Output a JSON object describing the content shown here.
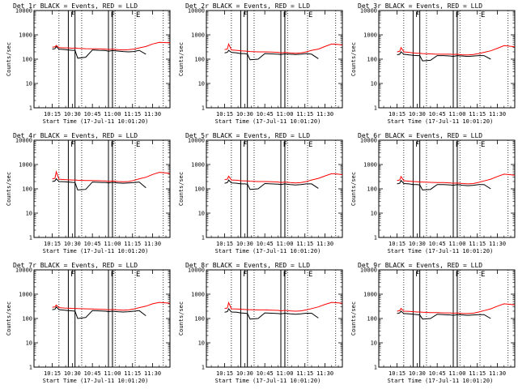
{
  "chart_data": {
    "type": "line",
    "panel_grid": "3x3",
    "common": {
      "xlabel": "Start Time (17-Jul-11 10:01:20)",
      "ylabel": "Counts/sec",
      "x_ticks": [
        "10:15",
        "10:30",
        "10:45",
        "11:00",
        "11:15",
        "11:30"
      ],
      "x_tick_minutes": [
        15,
        30,
        45,
        60,
        75,
        90
      ],
      "xlim_minutes": [
        1.33,
        103
      ],
      "y_scale": "log",
      "ylim": [
        1,
        10000
      ],
      "y_ticks": [
        "1",
        "10",
        "100",
        "1000",
        "10000"
      ],
      "y_tick_values": [
        1,
        10,
        100,
        1000,
        10000
      ],
      "dotted_lines_minutes": [
        20,
        37,
        62,
        77,
        98
      ],
      "solid_lines_minutes": [
        27,
        32,
        57,
        60
      ],
      "markers": [
        {
          "label": "F",
          "minute": 28
        },
        {
          "label": "F",
          "minute": 58
        },
        {
          "label": "E",
          "minute": 77
        }
      ],
      "series_colors": {
        "events": "#000000",
        "lld": "#ff0000"
      },
      "x_minutes": [
        15,
        17,
        18,
        20,
        24,
        27,
        30,
        32,
        34,
        40,
        45,
        50,
        55,
        57,
        60,
        64,
        68,
        72,
        76,
        80,
        85,
        90,
        95,
        100,
        103
      ]
    },
    "panels": [
      {
        "title": "Det 1r BLACK = Events, RED = LLD",
        "series": [
          {
            "name": "Events",
            "values": [
              260,
              270,
              330,
              260,
              250,
              240,
              230,
              230,
              110,
              120,
              240,
              230,
              225,
              210,
              225,
              215,
              205,
              200,
              205,
              230,
              160,
              null,
              null,
              null,
              null
            ]
          },
          {
            "name": "LLD",
            "values": [
              310,
              320,
              370,
              300,
              290,
              290,
              280,
              290,
              280,
              270,
              265,
              265,
              260,
              250,
              260,
              245,
              240,
              245,
              260,
              290,
              330,
              420,
              490,
              480,
              470
            ]
          }
        ]
      },
      {
        "title": "Det 2r BLACK = Events, RED = LLD",
        "series": [
          {
            "name": "Events",
            "values": [
              180,
              190,
              230,
              190,
              180,
              170,
              170,
              160,
              95,
              100,
              170,
              165,
              160,
              155,
              165,
              160,
              155,
              160,
              170,
              160,
              105,
              null,
              null,
              null,
              null
            ]
          },
          {
            "name": "LLD",
            "values": [
              250,
              260,
              420,
              240,
              230,
              220,
              215,
              210,
              205,
              200,
              200,
              195,
              190,
              180,
              190,
              180,
              175,
              180,
              200,
              230,
              260,
              330,
              420,
              400,
              380
            ]
          }
        ]
      },
      {
        "title": "Det 3r BLACK = Events, RED = LLD",
        "series": [
          {
            "name": "Events",
            "values": [
              150,
              160,
              200,
              160,
              150,
              145,
              140,
              140,
              85,
              90,
              140,
              140,
              135,
              130,
              140,
              135,
              130,
              135,
              140,
              140,
              100,
              null,
              null,
              null,
              null
            ]
          },
          {
            "name": "LLD",
            "values": [
              200,
              210,
              300,
              200,
              190,
              180,
              175,
              175,
              170,
              165,
              160,
              160,
              160,
              155,
              160,
              150,
              150,
              155,
              170,
              190,
              220,
              280,
              360,
              340,
              320
            ]
          }
        ]
      },
      {
        "title": "Det 4r BLACK = Events, RED = LLD",
        "series": [
          {
            "name": "Events",
            "values": [
              200,
              210,
              260,
              200,
              195,
              190,
              185,
              180,
              90,
              95,
              190,
              185,
              180,
              175,
              185,
              175,
              170,
              175,
              180,
              190,
              110,
              null,
              null,
              null,
              null
            ]
          },
          {
            "name": "LLD",
            "values": [
              260,
              270,
              500,
              250,
              240,
              235,
              230,
              230,
              225,
              220,
              220,
              215,
              210,
              200,
              210,
              200,
              195,
              200,
              220,
              260,
              300,
              390,
              480,
              450,
              420
            ]
          }
        ]
      },
      {
        "title": "Det 5r BLACK = Events, RED = LLD",
        "series": [
          {
            "name": "Events",
            "values": [
              170,
              180,
              230,
              175,
              170,
              160,
              160,
              155,
              95,
              100,
              165,
              160,
              155,
              150,
              160,
              150,
              145,
              150,
              160,
              160,
              105,
              null,
              null,
              null,
              null
            ]
          },
          {
            "name": "LLD",
            "values": [
              240,
              250,
              330,
              230,
              225,
              215,
              210,
              210,
              205,
              200,
              200,
              195,
              190,
              180,
              190,
              180,
              175,
              180,
              200,
              230,
              270,
              340,
              420,
              400,
              380
            ]
          }
        ]
      },
      {
        "title": "Det 6r BLACK = Events, RED = LLD",
        "series": [
          {
            "name": "Events",
            "values": [
              160,
              170,
              220,
              165,
              160,
              150,
              150,
              145,
              90,
              95,
              150,
              150,
              145,
              140,
              150,
              140,
              135,
              140,
              150,
              150,
              100,
              null,
              null,
              null,
              null
            ]
          },
          {
            "name": "LLD",
            "values": [
              220,
              230,
              320,
              215,
              205,
              200,
              195,
              190,
              190,
              185,
              180,
              180,
              175,
              170,
              175,
              165,
              160,
              165,
              185,
              210,
              250,
              320,
              400,
              380,
              360
            ]
          }
        ]
      },
      {
        "title": "Det 7r BLACK = Events, RED = LLD",
        "series": [
          {
            "name": "Events",
            "values": [
              230,
              240,
              300,
              230,
              220,
              210,
              205,
              200,
              100,
              110,
              210,
              205,
              200,
              190,
              200,
              190,
              185,
              190,
              200,
              210,
              130,
              null,
              null,
              null,
              null
            ]
          },
          {
            "name": "LLD",
            "values": [
              290,
              300,
              360,
              280,
              270,
              265,
              260,
              260,
              255,
              250,
              245,
              240,
              235,
              225,
              235,
              225,
              220,
              225,
              245,
              280,
              320,
              400,
              460,
              440,
              420
            ]
          }
        ]
      },
      {
        "title": "Det 8r BLACK = Events, RED = LLD",
        "series": [
          {
            "name": "Events",
            "values": [
              180,
              190,
              250,
              185,
              180,
              170,
              165,
              160,
              95,
              100,
              170,
              165,
              160,
              155,
              165,
              155,
              150,
              155,
              165,
              165,
              105,
              null,
              null,
              null,
              null
            ]
          },
          {
            "name": "LLD",
            "values": [
              260,
              270,
              450,
              250,
              245,
              240,
              235,
              230,
              230,
              225,
              225,
              220,
              215,
              205,
              215,
              205,
              200,
              205,
              225,
              255,
              300,
              380,
              460,
              440,
              420
            ]
          }
        ]
      },
      {
        "title": "Det 9r BLACK = Events, RED = LLD",
        "series": [
          {
            "name": "Events",
            "values": [
              160,
              170,
              200,
              160,
              155,
              150,
              145,
              140,
              95,
              100,
              150,
              145,
              140,
              135,
              145,
              140,
              135,
              140,
              145,
              145,
              100,
              null,
              null,
              null,
              null
            ]
          },
          {
            "name": "LLD",
            "values": [
              200,
              210,
              260,
              200,
              195,
              190,
              185,
              185,
              180,
              175,
              175,
              170,
              170,
              165,
              170,
              160,
              160,
              165,
              185,
              210,
              250,
              320,
              400,
              380,
              360
            ]
          }
        ]
      }
    ]
  }
}
